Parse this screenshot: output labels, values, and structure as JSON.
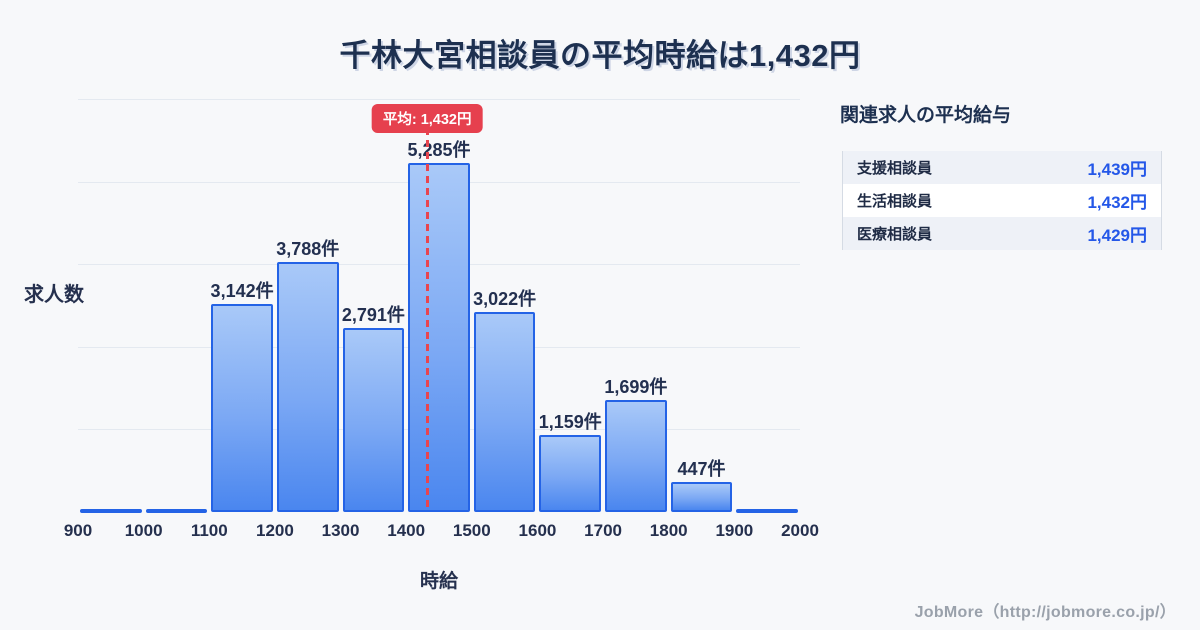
{
  "title": "千林大宮相談員の平均時給は1,432円",
  "chart_data": {
    "type": "bar",
    "subtype": "histogram",
    "title": "千林大宮相談員の平均時給は1,432円",
    "xlabel": "時給",
    "ylabel": "求人数",
    "bin_edges": [
      900,
      1000,
      1100,
      1200,
      1300,
      1400,
      1500,
      1600,
      1700,
      1800,
      1900,
      2000
    ],
    "x_ticks": [
      "900",
      "1000",
      "1100",
      "1200",
      "1300",
      "1400",
      "1500",
      "1600",
      "1700",
      "1800",
      "1900",
      "2000"
    ],
    "values": [
      50,
      50,
      3142,
      3788,
      2791,
      5285,
      3022,
      1159,
      1699,
      447,
      50
    ],
    "labels": [
      "",
      "",
      "3,142件",
      "3,788件",
      "2,791件",
      "5,285件",
      "3,022件",
      "1,159件",
      "1,699件",
      "447件",
      ""
    ],
    "ylim": [
      0,
      6250
    ],
    "grid": "horizontal",
    "gridline_count": 5,
    "legend": "none",
    "average": {
      "value": 1432,
      "label": "平均: 1,432円"
    },
    "colors": {
      "bar_fill_top": "#a9c9f8",
      "bar_fill_bottom": "#4a86ef",
      "bar_border": "#2463e6",
      "average_line": "#e8454f",
      "badge_background": "#e6404e",
      "badge_text": "#ffffff",
      "gridline": "#e4e9f0"
    }
  },
  "related_jobs": {
    "heading": "関連求人の平均給与",
    "rows": [
      {
        "label": "支援相談員",
        "value": "1,439円"
      },
      {
        "label": "生活相談員",
        "value": "1,432円"
      },
      {
        "label": "医療相談員",
        "value": "1,429円"
      }
    ]
  },
  "footer": {
    "credit": "JobMore（http://jobmore.co.jp/）"
  },
  "theme": {
    "background": "#f7f8fa",
    "title_color": "#1d3050",
    "text_color": "#25304e",
    "value_color": "#2457e8",
    "stripe_color": "#eef1f7",
    "footer_color": "#9aa1ab"
  }
}
